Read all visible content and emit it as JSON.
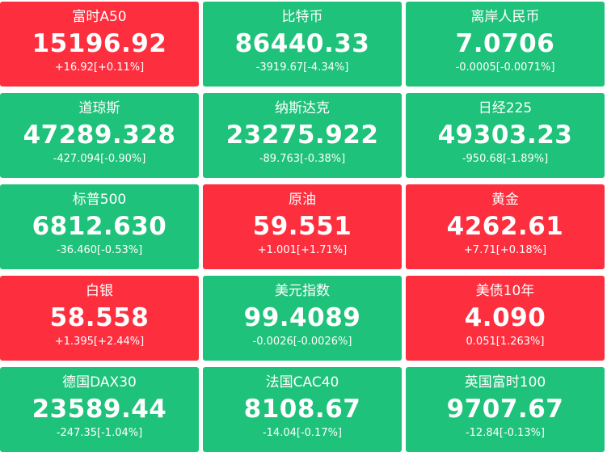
{
  "tiles": [
    {
      "name": "富时A50",
      "price": "15196.92",
      "change": "+16.92[+0.11%]",
      "trend": "up"
    },
    {
      "name": "比特币",
      "price": "86440.33",
      "change": "-3919.67[-4.34%]",
      "trend": "down"
    },
    {
      "name": "离岸人民币",
      "price": "7.0706",
      "change": "-0.0005[-0.0071%]",
      "trend": "down"
    },
    {
      "name": "道琼斯",
      "price": "47289.328",
      "change": "-427.094[-0.90%]",
      "trend": "down"
    },
    {
      "name": "纳斯达克",
      "price": "23275.922",
      "change": "-89.763[-0.38%]",
      "trend": "down"
    },
    {
      "name": "日经225",
      "price": "49303.23",
      "change": "-950.68[-1.89%]",
      "trend": "down"
    },
    {
      "name": "标普500",
      "price": "6812.630",
      "change": "-36.460[-0.53%]",
      "trend": "down"
    },
    {
      "name": "原油",
      "price": "59.551",
      "change": "+1.001[+1.71%]",
      "trend": "up"
    },
    {
      "name": "黄金",
      "price": "4262.61",
      "change": "+7.71[+0.18%]",
      "trend": "up"
    },
    {
      "name": "白银",
      "price": "58.558",
      "change": "+1.395[+2.44%]",
      "trend": "up"
    },
    {
      "name": "美元指数",
      "price": "99.4089",
      "change": "-0.0026[-0.0026%]",
      "trend": "down"
    },
    {
      "name": "美债10年",
      "price": "4.090",
      "change": "0.051[1.263%]",
      "trend": "up"
    },
    {
      "name": "德国DAX30",
      "price": "23589.44",
      "change": "-247.35[-1.04%]",
      "trend": "down"
    },
    {
      "name": "法国CAC40",
      "price": "8108.67",
      "change": "-14.04[-0.17%]",
      "trend": "down"
    },
    {
      "name": "英国富时100",
      "price": "9707.67",
      "change": "-12.84[-0.13%]",
      "trend": "down"
    }
  ],
  "colors": {
    "up": "#fd2f3f",
    "down": "#1fc27a",
    "text": "#ffffff"
  }
}
